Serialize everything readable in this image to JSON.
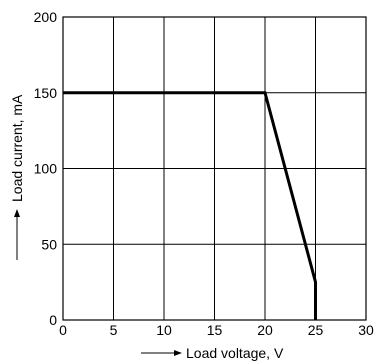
{
  "chart_data": {
    "type": "line",
    "title": "",
    "xlabel": "Load voltage, V",
    "ylabel": "Load current, mA",
    "xlim": [
      0,
      30
    ],
    "ylim": [
      0,
      200
    ],
    "x_ticks": [
      0,
      5,
      10,
      15,
      20,
      25,
      30
    ],
    "y_ticks": [
      0,
      50,
      100,
      150,
      200
    ],
    "x_tick_labels": [
      "0",
      "5",
      "10",
      "15",
      "20",
      "25",
      "30"
    ],
    "y_tick_labels": [
      "0",
      "50",
      "100",
      "150",
      "200"
    ],
    "grid": true,
    "series": [
      {
        "x": [
          0,
          20,
          25,
          25
        ],
        "y": [
          150,
          150,
          25,
          0
        ]
      }
    ]
  }
}
